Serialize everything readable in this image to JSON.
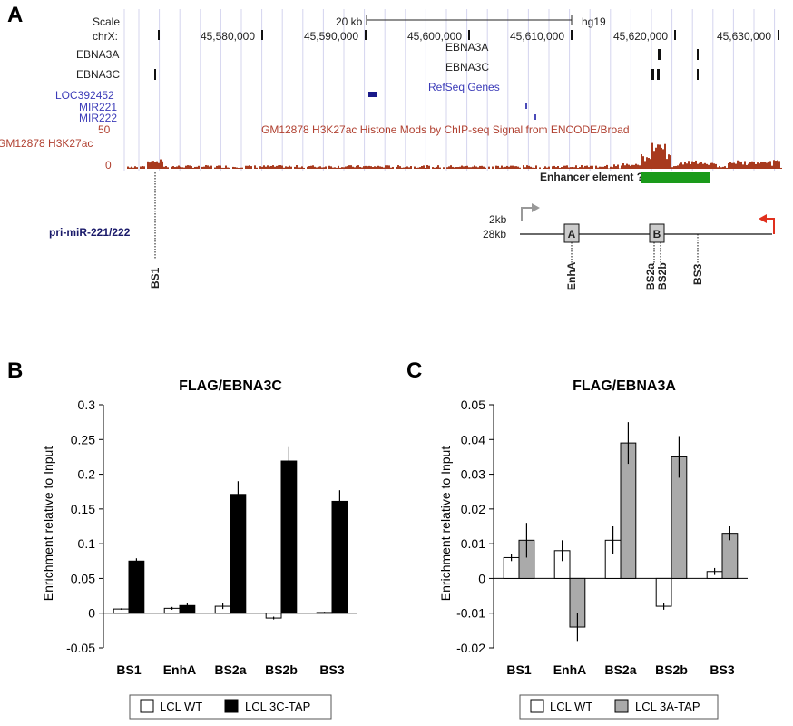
{
  "panel_a": {
    "letter": "A",
    "scale_label": "Scale",
    "scale_value": "20 kb",
    "assembly": "hg19",
    "chrom_label": "chrX:",
    "positions": [
      "45,580,000",
      "45,590,000",
      "45,600,000",
      "45,610,000",
      "45,620,000",
      "45,630,000"
    ],
    "ebna3a_left": "EBNA3A",
    "ebna3c_left": "EBNA3C",
    "ebna3a_center": "EBNA3A",
    "ebna3c_center": "EBNA3C",
    "loc_gene": "LOC392452",
    "mir221": "MIR221",
    "mir222": "MIR222",
    "refseq_label": "RefSeq Genes",
    "histone_label": "GM12878 H3K27ac Histone Mods by ChIP-seq Signal from ENCODE/Broad",
    "signal_track_label": "GM12878 H3K27ac",
    "signal_max": "50",
    "signal_min": "0",
    "enhancer_label": "Enhancer element ?",
    "pri_mir_label": "pri-miR-221/222",
    "scale_2kb": "2kb",
    "scale_28kb": "28kb",
    "box_a": "A",
    "box_b": "B",
    "site_labels": [
      "BS1",
      "EnhA",
      "BS2a",
      "BS2b",
      "BS3"
    ]
  },
  "colors": {
    "signal": "#a83a1e",
    "enhancer": "#1a9a1a",
    "grid": "#d4d4ee",
    "loc_gene": "#1a1a8a",
    "red_arrow": "#e0301e",
    "grey_arrow": "#999999",
    "wt_bar": "#ffffff",
    "ebna3c_bar": "#000000",
    "ebna3a_bar": "#aaaaaa"
  },
  "chart_data": [
    {
      "panel": "B",
      "type": "bar",
      "title": "FLAG/EBNA3C",
      "ylabel": "Enrichment relative to Input",
      "categories": [
        "BS1",
        "EnhA",
        "BS2a",
        "BS2b",
        "BS3"
      ],
      "ylim": [
        -0.05,
        0.3
      ],
      "yticks": [
        "-0.05",
        "0",
        "0.05",
        "0.1",
        "0.15",
        "0.2",
        "0.25",
        "0.3"
      ],
      "series": [
        {
          "name": "LCL WT",
          "values": [
            0.006,
            0.007,
            0.01,
            -0.007,
            0.001
          ],
          "errors": [
            0.001,
            0.002,
            0.004,
            0.002,
            0.001
          ]
        },
        {
          "name": "LCL 3C-TAP",
          "values": [
            0.075,
            0.011,
            0.171,
            0.219,
            0.161
          ],
          "errors": [
            0.004,
            0.004,
            0.019,
            0.02,
            0.016
          ]
        }
      ]
    },
    {
      "panel": "C",
      "type": "bar",
      "title": "FLAG/EBNA3A",
      "ylabel": "Enrichment relative to Input",
      "categories": [
        "BS1",
        "EnhA",
        "BS2a",
        "BS2b",
        "BS3"
      ],
      "ylim": [
        -0.02,
        0.05
      ],
      "yticks": [
        "-0.02",
        "-0.01",
        "0",
        "0.01",
        "0.02",
        "0.03",
        "0.04",
        "0.05"
      ],
      "series": [
        {
          "name": "LCL WT",
          "values": [
            0.006,
            0.008,
            0.011,
            -0.008,
            0.002
          ],
          "errors": [
            0.001,
            0.003,
            0.004,
            0.001,
            0.001
          ]
        },
        {
          "name": "LCL 3A-TAP",
          "values": [
            0.011,
            -0.014,
            0.039,
            0.035,
            0.013
          ],
          "errors": [
            0.005,
            0.004,
            0.006,
            0.006,
            0.002
          ]
        }
      ]
    }
  ]
}
